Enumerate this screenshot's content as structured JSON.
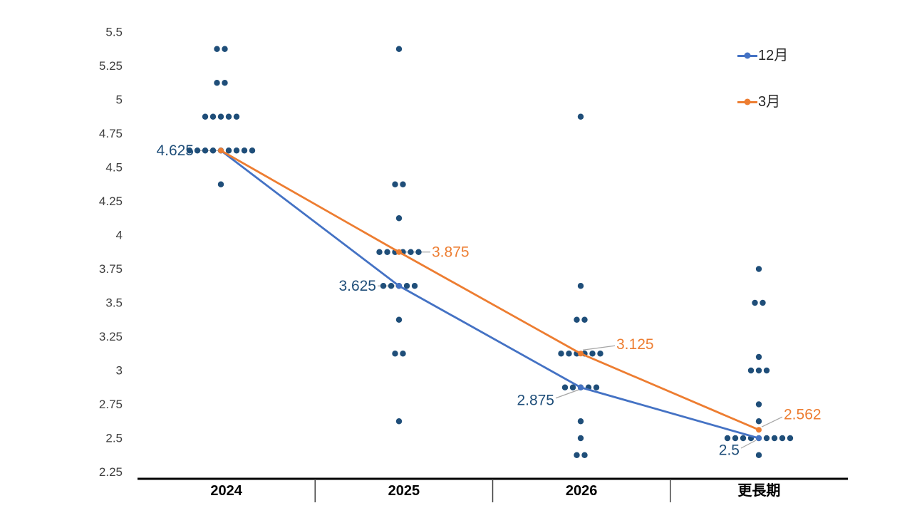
{
  "chart": {
    "legend": [
      {
        "label": "12月",
        "color": "#4472C4"
      },
      {
        "label": "3月",
        "color": "#ED7D31"
      }
    ]
  },
  "chart_data": {
    "type": "scatter",
    "title": "",
    "subtitle": "",
    "categories": [
      "2024",
      "2025",
      "2026",
      "更長期"
    ],
    "y_axis": {
      "min": 2.25,
      "max": 5.5,
      "tick_step": 0.25,
      "tick_labels": [
        "5.5",
        "5.25",
        "5",
        "4.75",
        "4.5",
        "4.25",
        "4",
        "3.75",
        "3.5",
        "3.25",
        "3",
        "2.75",
        "2.5",
        "2.25"
      ],
      "tick_color": "#404040"
    },
    "grid": false,
    "legend_position": "top-right",
    "dot_color": "#1F4E79",
    "dots": [
      {
        "category": "2024",
        "distribution": [
          {
            "value": 5.375,
            "count": 2
          },
          {
            "value": 5.125,
            "count": 2
          },
          {
            "value": 4.875,
            "count": 5
          },
          {
            "value": 4.625,
            "count": 9
          },
          {
            "value": 4.375,
            "count": 1
          }
        ]
      },
      {
        "category": "2025",
        "distribution": [
          {
            "value": 5.375,
            "count": 1
          },
          {
            "value": 4.375,
            "count": 2
          },
          {
            "value": 4.125,
            "count": 1
          },
          {
            "value": 3.875,
            "count": 6
          },
          {
            "value": 3.625,
            "count": 5
          },
          {
            "value": 3.375,
            "count": 1
          },
          {
            "value": 3.125,
            "count": 2
          },
          {
            "value": 2.625,
            "count": 1
          }
        ]
      },
      {
        "category": "2026",
        "distribution": [
          {
            "value": 4.875,
            "count": 1
          },
          {
            "value": 3.625,
            "count": 1
          },
          {
            "value": 3.375,
            "count": 2
          },
          {
            "value": 3.125,
            "count": 6
          },
          {
            "value": 2.875,
            "count": 5
          },
          {
            "value": 2.625,
            "count": 1
          },
          {
            "value": 2.5,
            "count": 1
          },
          {
            "value": 2.375,
            "count": 2
          }
        ]
      },
      {
        "category": "更長期",
        "distribution": [
          {
            "value": 3.75,
            "count": 1
          },
          {
            "value": 3.5,
            "count": 2
          },
          {
            "value": 3.1,
            "count": 1
          },
          {
            "value": 3.0,
            "count": 3
          },
          {
            "value": 2.75,
            "count": 1
          },
          {
            "value": 2.625,
            "count": 1
          },
          {
            "value": 2.5,
            "count": 9
          },
          {
            "value": 2.375,
            "count": 1
          }
        ]
      }
    ],
    "series": [
      {
        "name": "12月",
        "color": "#4472C4",
        "values": [
          4.625,
          3.625,
          2.875,
          2.5
        ],
        "point_labels": [
          "4.625",
          "3.625",
          "2.875",
          "2.5"
        ]
      },
      {
        "name": "3月",
        "color": "#ED7D31",
        "values": [
          4.625,
          3.875,
          3.125,
          2.562
        ],
        "point_labels": [
          null,
          "3.875",
          "3.125",
          "2.562"
        ]
      }
    ],
    "leader_line_color": "#A6A6A6",
    "axis_line_color": "#000000",
    "x_label_color": "#000000"
  }
}
